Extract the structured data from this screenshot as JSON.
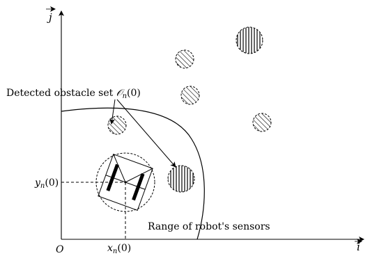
{
  "axes": {
    "x_label": "i",
    "y_label": "j",
    "origin_label": "O"
  },
  "labels": {
    "detected_set_prefix": "Detected obstacle set ",
    "detected_set_symbol": "𝒪",
    "detected_set_sub": "n",
    "detected_set_arg": "(0)",
    "sensor_range": "Range of robot's sensors",
    "y_coord_var": "y",
    "y_coord_sub": "n",
    "y_coord_arg": "(0)",
    "x_coord_var": "x",
    "x_coord_sub": "n",
    "x_coord_arg": "(0)"
  },
  "obstacles": [
    {
      "id": "obstacle-1",
      "hatch": "diagonal",
      "detected": false
    },
    {
      "id": "obstacle-2",
      "hatch": "vertical",
      "detected": false
    },
    {
      "id": "obstacle-3",
      "hatch": "diagonal",
      "detected": false
    },
    {
      "id": "obstacle-4",
      "hatch": "diagonal",
      "detected": true
    },
    {
      "id": "obstacle-5",
      "hatch": "diagonal",
      "detected": false
    },
    {
      "id": "obstacle-6",
      "hatch": "vertical",
      "detected": true
    }
  ]
}
